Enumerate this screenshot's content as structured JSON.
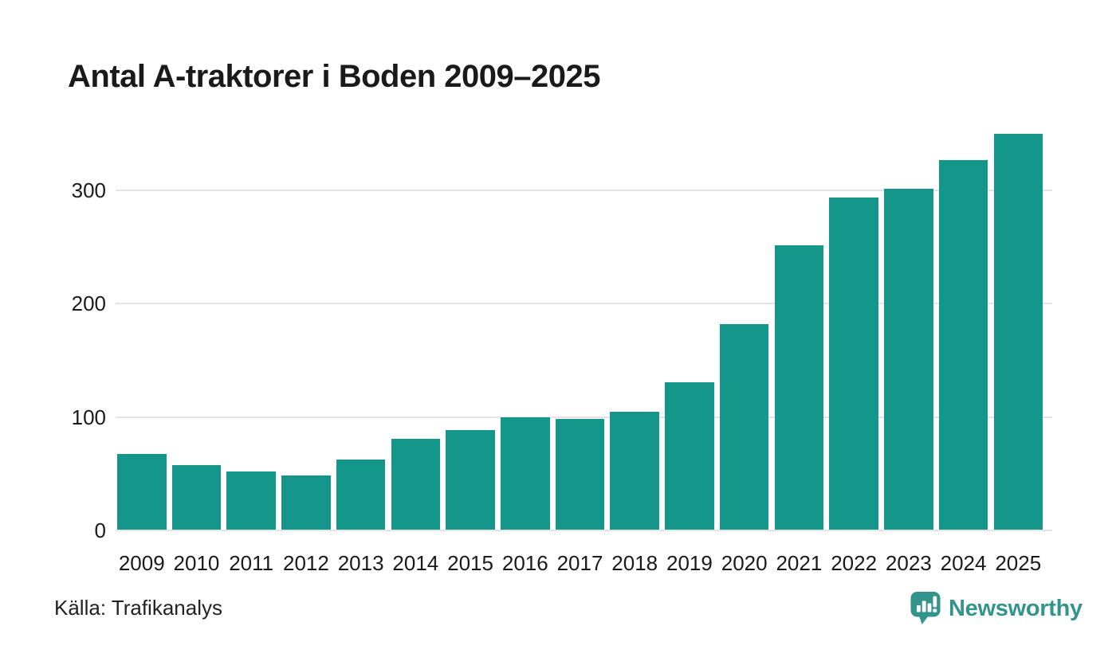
{
  "header": {
    "title": "Antal A-traktorer i Boden 2009–2025"
  },
  "footer": {
    "source": "Källa: Trafikanalys",
    "brand": "Newsworthy"
  },
  "colors": {
    "bar": "#15968B",
    "brand": "#32948B",
    "grid": "#e4e4e4",
    "text": "#1a1a1a"
  },
  "chart_data": {
    "type": "bar",
    "title": "Antal A-traktorer i Boden 2009–2025",
    "categories": [
      "2009",
      "2010",
      "2011",
      "2012",
      "2013",
      "2014",
      "2015",
      "2016",
      "2017",
      "2018",
      "2019",
      "2020",
      "2021",
      "2022",
      "2023",
      "2024",
      "2025"
    ],
    "values": [
      67,
      57,
      51,
      48,
      62,
      80,
      88,
      99,
      98,
      104,
      130,
      181,
      251,
      293,
      301,
      326,
      349
    ],
    "xlabel": "",
    "ylabel": "",
    "yticks": [
      0,
      100,
      200,
      300
    ],
    "ylim": [
      0,
      362
    ],
    "grid": "horizontal",
    "legend": "none",
    "bar_color": "#15968B",
    "source": "Källa: Trafikanalys"
  }
}
